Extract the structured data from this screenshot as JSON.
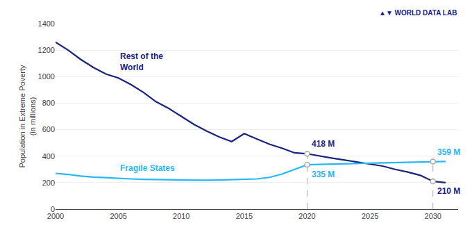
{
  "chart_data": {
    "type": "line",
    "ylabel": "Population in Extreme Poverty\n(in millions)",
    "x": [
      2000,
      2001,
      2002,
      2003,
      2004,
      2005,
      2006,
      2007,
      2008,
      2009,
      2010,
      2011,
      2012,
      2013,
      2014,
      2015,
      2016,
      2017,
      2018,
      2019,
      2020,
      2021,
      2022,
      2023,
      2024,
      2025,
      2026,
      2027,
      2028,
      2029,
      2030,
      2031
    ],
    "series": [
      {
        "name": "Rest of the\nWorld",
        "color": "#1a237e",
        "values": [
          1260,
          1200,
          1130,
          1070,
          1020,
          990,
          940,
          880,
          810,
          760,
          700,
          640,
          590,
          545,
          510,
          570,
          530,
          490,
          460,
          425,
          418,
          400,
          385,
          370,
          355,
          340,
          325,
          300,
          280,
          255,
          210,
          200
        ]
      },
      {
        "name": "Fragile States",
        "color": "#29b6f6",
        "values": [
          270,
          262,
          250,
          242,
          238,
          232,
          228,
          225,
          222,
          222,
          220,
          218,
          218,
          220,
          222,
          225,
          228,
          240,
          265,
          300,
          335,
          338,
          340,
          342,
          344,
          346,
          348,
          350,
          352,
          354,
          359,
          360
        ]
      }
    ],
    "xlim": [
      2000,
      2032
    ],
    "xticks": [
      2000,
      2005,
      2010,
      2015,
      2020,
      2025,
      2030
    ],
    "ylim": [
      0,
      1400
    ],
    "yticks": [
      0,
      200,
      400,
      600,
      800,
      1000,
      1200,
      1400
    ],
    "grid": true,
    "annotations": [
      {
        "x": 2020,
        "y": 418,
        "text": "418 M",
        "color": "#1a237e"
      },
      {
        "x": 2020,
        "y": 335,
        "text": "335 M",
        "color": "#29b6f6"
      },
      {
        "x": 2030,
        "y": 359,
        "text": "359 M",
        "color": "#29b6f6"
      },
      {
        "x": 2030,
        "y": 210,
        "text": "210 M",
        "color": "#1a237e"
      },
      {
        "text": "▲▼ WORLD DATA LAB",
        "color": "#1a237e"
      }
    ]
  }
}
